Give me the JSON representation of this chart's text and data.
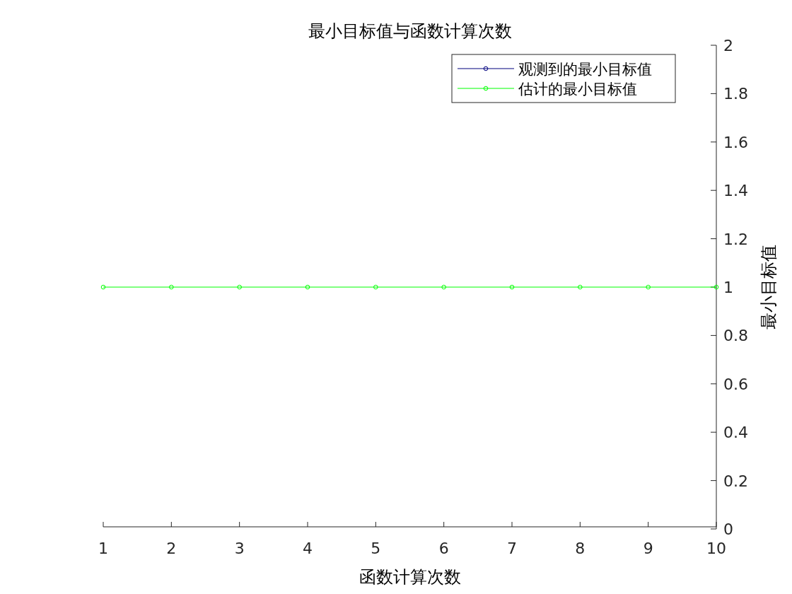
{
  "chart_data": {
    "type": "line",
    "title": "最小目标值与函数计算次数",
    "xlabel": "函数计算次数",
    "ylabel": "最小目标值",
    "x": [
      1,
      2,
      3,
      4,
      5,
      6,
      7,
      8,
      9,
      10
    ],
    "xlim": [
      1,
      10
    ],
    "xticks": [
      1,
      2,
      3,
      4,
      5,
      6,
      7,
      8,
      9,
      10
    ],
    "ylim": [
      0,
      2
    ],
    "yticks": [
      0,
      0.2,
      0.4,
      0.6,
      0.8,
      1,
      1.2,
      1.4,
      1.6,
      1.8,
      2
    ],
    "marker": "circle",
    "legend": "top right",
    "series": [
      {
        "name": "观测到的最小目标值",
        "color": "#00007f",
        "values": [
          null,
          null,
          null,
          null,
          null,
          null,
          null,
          null,
          null,
          null
        ]
      },
      {
        "name": "估计的最小目标值",
        "color": "#00ff00",
        "values": [
          1,
          1,
          1,
          1,
          1,
          1,
          1,
          1,
          1,
          1
        ]
      }
    ]
  }
}
